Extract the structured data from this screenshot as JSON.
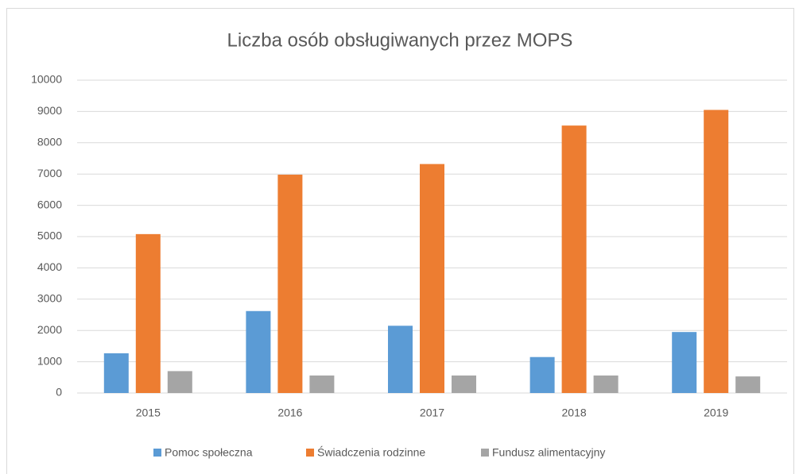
{
  "chart_data": {
    "type": "bar",
    "title": "Liczba osób obsługiwanych przez MOPS",
    "categories": [
      "2015",
      "2016",
      "2017",
      "2018",
      "2019"
    ],
    "series": [
      {
        "name": "Pomoc społeczna",
        "color": "#5b9bd5",
        "values": [
          1270,
          2620,
          2150,
          1150,
          1950
        ]
      },
      {
        "name": "Świadczenia rodzinne",
        "color": "#ed7d31",
        "values": [
          5080,
          6980,
          7320,
          8550,
          9050
        ]
      },
      {
        "name": "Fundusz alimentacyjny",
        "color": "#a5a5a5",
        "values": [
          700,
          560,
          560,
          560,
          530
        ]
      }
    ],
    "ylim": [
      0,
      10000
    ],
    "yticks": [
      0,
      1000,
      2000,
      3000,
      4000,
      5000,
      6000,
      7000,
      8000,
      9000,
      10000
    ],
    "grid": true,
    "legend": "bottom"
  }
}
